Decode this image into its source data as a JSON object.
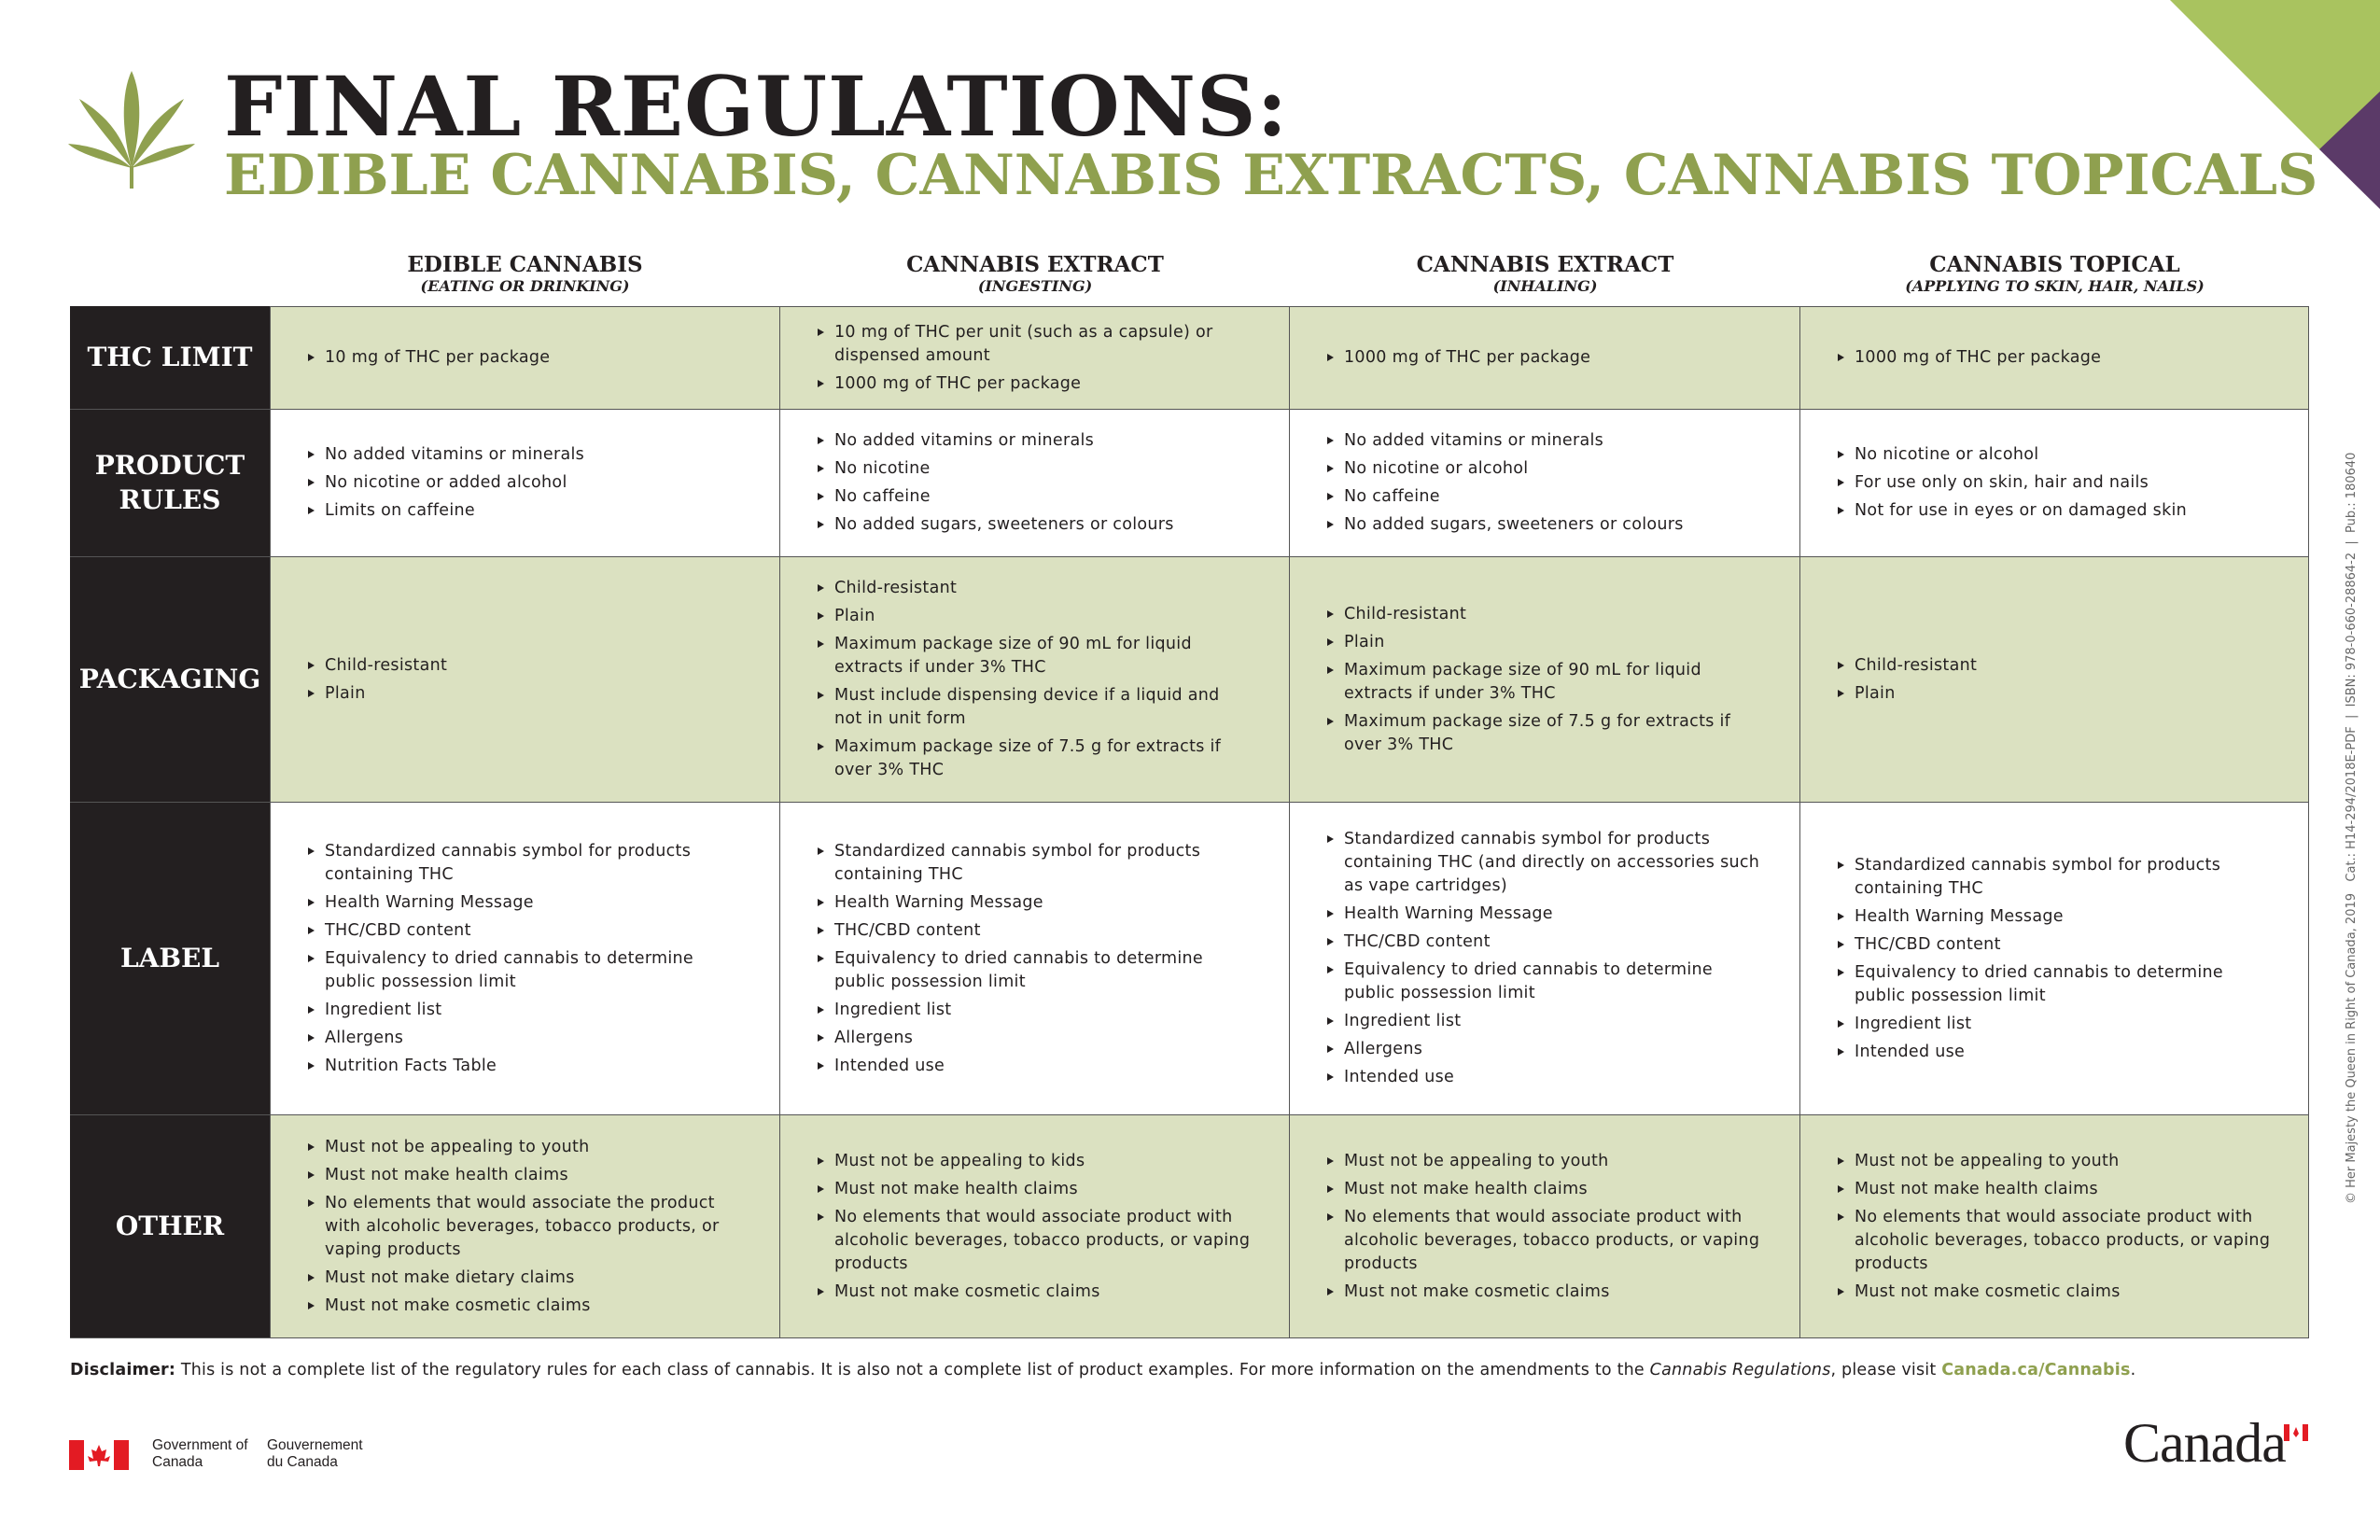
{
  "header": {
    "title": "FINAL REGULATIONS:",
    "subtitle": "EDIBLE CANNABIS, CANNABIS EXTRACTS, CANNABIS TOPICALS"
  },
  "table": {
    "columns": [
      {
        "title": "EDIBLE CANNABIS",
        "sub": "(EATING OR DRINKING)"
      },
      {
        "title": "CANNABIS EXTRACT",
        "sub": "(INGESTING)"
      },
      {
        "title": "CANNABIS EXTRACT",
        "sub": "(INHALING)"
      },
      {
        "title": "CANNABIS TOPICAL",
        "sub": "(APPLYING TO SKIN, HAIR, NAILS)"
      }
    ],
    "rows": [
      {
        "label": "THC LIMIT",
        "cells": [
          [
            "10 mg of THC per package"
          ],
          [
            "10 mg of THC per unit (such as a capsule) or dispensed amount",
            "1000 mg of THC per package"
          ],
          [
            "1000 mg of THC per package"
          ],
          [
            "1000 mg of THC per package"
          ]
        ]
      },
      {
        "label": "PRODUCT RULES",
        "cells": [
          [
            "No added vitamins or minerals",
            "No nicotine or added alcohol",
            "Limits on caffeine"
          ],
          [
            "No added vitamins or minerals",
            "No nicotine",
            "No caffeine",
            "No added sugars, sweeteners or colours"
          ],
          [
            "No added vitamins or minerals",
            "No nicotine or alcohol",
            "No caffeine",
            "No added sugars, sweeteners or colours"
          ],
          [
            "No nicotine or alcohol",
            "For use only on skin, hair and nails",
            "Not for use in eyes or on damaged skin"
          ]
        ]
      },
      {
        "label": "PACKAGING",
        "cells": [
          [
            "Child-resistant",
            "Plain"
          ],
          [
            "Child-resistant",
            "Plain",
            "Maximum package size of 90 mL for liquid extracts if under 3% THC",
            "Must include dispensing device if a liquid and not in unit form",
            "Maximum package size of 7.5 g for extracts if over 3% THC"
          ],
          [
            "Child-resistant",
            "Plain",
            "Maximum package size of 90 mL for liquid extracts if under 3% THC",
            "Maximum package size of 7.5 g for extracts if over 3% THC"
          ],
          [
            "Child-resistant",
            "Plain"
          ]
        ]
      },
      {
        "label": "LABEL",
        "cells": [
          [
            "Standardized cannabis symbol for products containing THC",
            "Health Warning Message",
            "THC/CBD content",
            "Equivalency to dried cannabis to determine public possession limit",
            "Ingredient list",
            "Allergens",
            "Nutrition Facts Table"
          ],
          [
            "Standardized cannabis symbol for products containing THC",
            "Health Warning Message",
            "THC/CBD content",
            "Equivalency to dried cannabis to determine public possession limit",
            "Ingredient list",
            "Allergens",
            "Intended use"
          ],
          [
            "Standardized cannabis symbol for products containing THC (and directly on accessories such as vape cartridges)",
            "Health Warning Message",
            "THC/CBD content",
            "Equivalency to dried cannabis to determine public possession limit",
            "Ingredient list",
            "Allergens",
            "Intended use"
          ],
          [
            "Standardized cannabis symbol for products containing THC",
            "Health Warning Message",
            "THC/CBD content",
            "Equivalency to dried cannabis to determine public possession limit",
            "Ingredient list",
            "Intended use"
          ]
        ]
      },
      {
        "label": "OTHER",
        "cells": [
          [
            "Must not be appealing to youth",
            "Must not make health claims",
            "No elements that would associate the product with alcoholic beverages, tobacco products, or vaping products",
            "Must not make dietary claims",
            "Must not make cosmetic claims"
          ],
          [
            "Must not be appealing to kids",
            "Must not make health claims",
            "No elements that would associate product with alcoholic beverages, tobacco products, or vaping products",
            "Must not make cosmetic claims"
          ],
          [
            "Must not be appealing to youth",
            "Must not make health claims",
            "No elements that would associate product with alcoholic beverages, tobacco products, or vaping products",
            "Must not make cosmetic claims"
          ],
          [
            "Must not be appealing to youth",
            "Must not make health claims",
            "No elements that would associate product with alcoholic beverages, tobacco products, or vaping products",
            "Must not make cosmetic claims"
          ]
        ]
      }
    ]
  },
  "disclaimer": {
    "label": "Disclaimer:",
    "text": " This is not a complete list of the regulatory rules for each class of cannabis. It is also not a complete list of product examples. For more information on the amendments to the ",
    "italic": "Cannabis Regulations",
    "text2": ", please visit ",
    "link": "Canada.ca/Cannabis",
    "end": "."
  },
  "side_note": "© Her Majesty the Queen in Right of Canada, 2019   Cat.: H14-294/2018E-PDF  |  ISBN: 978-0-660-28864-2  |  Pub.: 180640",
  "footer": {
    "gov_en": "Government of Canada",
    "gov_fr": "Gouvernement du Canada",
    "wordmark": "Canada"
  }
}
